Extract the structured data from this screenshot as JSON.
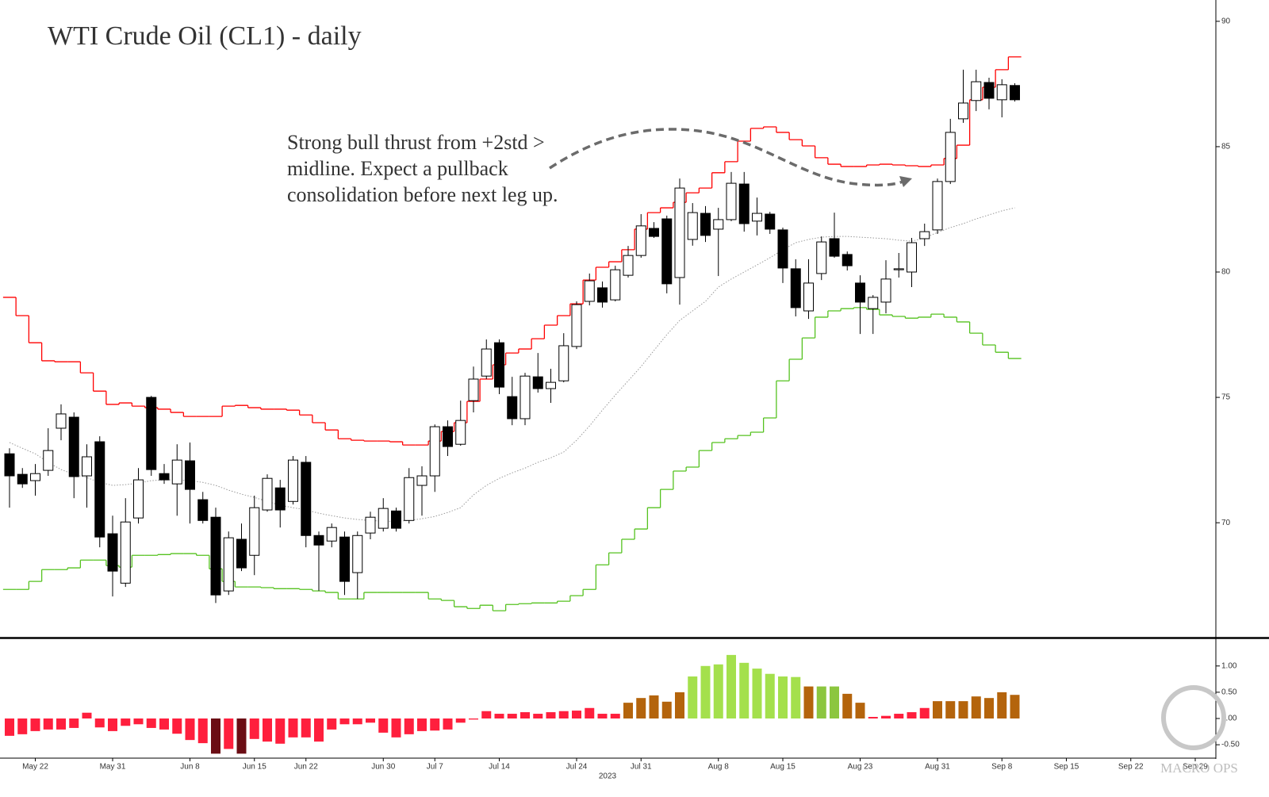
{
  "chart_data": [
    {
      "type": "candlestick",
      "title": "WTI Crude Oil (CL1) - daily",
      "annotation": [
        "Strong bull thrust  from +2std >",
        "midline. Expect a pullback",
        "consolidation before next leg up."
      ],
      "categories": [
        null,
        null,
        "May 22",
        null,
        null,
        null,
        null,
        null,
        "May 31",
        null,
        null,
        null,
        null,
        null,
        "Jun 8",
        null,
        null,
        null,
        null,
        "Jun 15",
        null,
        null,
        null,
        "Jun 22",
        null,
        null,
        null,
        null,
        null,
        "Jun 30",
        null,
        null,
        null,
        "Jul 7",
        null,
        null,
        null,
        null,
        "Jul 14",
        null,
        null,
        null,
        null,
        null,
        "Jul 24",
        null,
        null,
        null,
        null,
        "Jul 31",
        null,
        null,
        null,
        null,
        null,
        "Aug 8",
        null,
        null,
        null,
        null,
        "Aug 15",
        null,
        null,
        null,
        null,
        null,
        "Aug 23",
        null,
        null,
        null,
        null,
        null,
        "Aug 31",
        null,
        null,
        null,
        null,
        "Sep 8",
        null,
        null,
        null,
        null,
        "Sep 15",
        null,
        null,
        null,
        null,
        "Sep 22",
        null,
        null,
        null,
        null,
        "Sep 29"
      ],
      "open": [
        72.75,
        71.93,
        71.68,
        72.09,
        73.77,
        74.21,
        71.87,
        73.23,
        69.56,
        67.59,
        70.19,
        75.0,
        71.96,
        71.55,
        72.47,
        70.92,
        70.22,
        67.28,
        69.34,
        68.7,
        70.51,
        71.39,
        70.85,
        72.41,
        69.49,
        69.27,
        69.43,
        68.01,
        69.59,
        69.78,
        70.47,
        70.09,
        71.49,
        71.87,
        73.83,
        73.13,
        74.87,
        75.85,
        77.18,
        75.03,
        74.15,
        75.82,
        75.35,
        75.66,
        77.03,
        78.83,
        79.37,
        78.89,
        79.87,
        80.66,
        81.74,
        82.12,
        79.78,
        81.3,
        82.34,
        81.71,
        82.09,
        83.51,
        82.03,
        82.31,
        81.68,
        80.13,
        78.45,
        79.94,
        81.33,
        80.7,
        79.56,
        78.54,
        78.8,
        80.09,
        80.0,
        81.33,
        81.68,
        83.61,
        86.11,
        86.84,
        87.56,
        86.87,
        87.44,
        null,
        null,
        null,
        null,
        null,
        null,
        null,
        null,
        null,
        null,
        null,
        null,
        null,
        null
      ],
      "high": [
        72.97,
        72.18,
        72.34,
        73.77,
        74.72,
        74.4,
        73.13,
        73.45,
        70.28,
        70.98,
        72.18,
        75.06,
        72.34,
        73.13,
        73.2,
        71.23,
        70.6,
        69.65,
        69.97,
        71.08,
        71.93,
        71.71,
        72.66,
        72.66,
        69.65,
        69.97,
        69.65,
        69.65,
        70.44,
        70.98,
        70.6,
        72.18,
        72.25,
        73.92,
        74.08,
        74.87,
        76.23,
        77.31,
        77.31,
        75.82,
        75.98,
        76.77,
        76.14,
        77.56,
        78.83,
        79.94,
        79.62,
        80.25,
        81.04,
        82.31,
        81.99,
        82.25,
        83.73,
        82.75,
        82.63,
        82.56,
        83.99,
        83.99,
        82.97,
        82.4,
        81.77,
        80.51,
        80.51,
        81.42,
        82.37,
        80.82,
        79.87,
        79.08,
        80.47,
        80.76,
        81.36,
        81.93,
        83.73,
        86.11,
        88.07,
        88.07,
        87.75,
        87.69,
        87.53,
        null,
        null,
        null,
        null,
        null,
        null,
        null,
        null,
        null,
        null,
        null,
        null,
        null,
        null
      ],
      "low": [
        70.6,
        71.39,
        71.08,
        71.87,
        73.29,
        70.98,
        70.6,
        69.02,
        67.06,
        67.44,
        69.97,
        71.87,
        71.55,
        70.28,
        69.97,
        69.97,
        66.8,
        67.12,
        68.07,
        67.91,
        70.44,
        69.81,
        70.73,
        69.02,
        67.28,
        69.02,
        67.12,
        66.96,
        69.34,
        69.65,
        69.65,
        69.97,
        70.28,
        71.23,
        72.66,
        73.07,
        74.4,
        75.73,
        75.13,
        73.89,
        73.89,
        75.19,
        74.78,
        75.6,
        76.93,
        78.67,
        78.58,
        78.83,
        79.78,
        80.57,
        81.36,
        79.15,
        78.7,
        81.05,
        81.2,
        79.84,
        82.03,
        81.61,
        81.46,
        81.52,
        79.56,
        78.23,
        78.13,
        79.68,
        80.57,
        80.06,
        77.53,
        77.53,
        78.35,
        79.78,
        79.4,
        81.04,
        81.52,
        83.51,
        85.95,
        86.42,
        86.49,
        86.17,
        86.8,
        null,
        null,
        null,
        null,
        null,
        null,
        null,
        null,
        null,
        null,
        null,
        null,
        null,
        null
      ],
      "close": [
        71.87,
        71.55,
        71.96,
        72.88,
        74.34,
        71.84,
        72.63,
        69.43,
        68.07,
        70.03,
        71.71,
        72.12,
        71.71,
        72.5,
        71.33,
        70.09,
        67.12,
        69.4,
        68.2,
        70.6,
        71.77,
        70.51,
        72.5,
        69.49,
        69.11,
        69.81,
        67.66,
        69.49,
        70.22,
        70.57,
        69.78,
        71.8,
        71.87,
        73.83,
        73.04,
        74.08,
        75.73,
        76.93,
        75.41,
        74.15,
        75.85,
        75.35,
        75.6,
        77.06,
        78.7,
        79.65,
        78.8,
        80.09,
        80.66,
        81.84,
        81.42,
        79.53,
        83.35,
        82.37,
        81.46,
        82.09,
        83.54,
        81.93,
        82.34,
        81.71,
        80.16,
        78.58,
        79.56,
        81.2,
        80.63,
        80.25,
        78.8,
        78.99,
        79.72,
        80.13,
        81.17,
        81.61,
        83.61,
        85.57,
        86.74,
        87.59,
        86.93,
        87.47,
        86.87,
        null,
        null,
        null,
        null,
        null,
        null,
        null,
        null,
        null,
        null,
        null,
        null,
        null,
        null
      ],
      "up_color": "#ffffff",
      "down_color": "#000000",
      "series": [
        {
          "style": "step",
          "color": "#ff0000",
          "values": [
            78.99,
            78.26,
            77.18,
            76.46,
            76.42,
            76.42,
            75.98,
            75.25,
            74.72,
            74.78,
            74.65,
            74.59,
            74.53,
            74.4,
            74.24,
            74.24,
            74.24,
            74.65,
            74.68,
            74.59,
            74.53,
            74.53,
            74.49,
            74.3,
            73.99,
            73.7,
            73.35,
            73.29,
            73.26,
            73.26,
            73.23,
            73.1,
            73.1,
            73.26,
            73.64,
            73.99,
            74.84,
            75.73,
            76.3,
            76.77,
            76.93,
            77.34,
            77.88,
            78.26,
            78.73,
            79.68,
            80.19,
            80.41,
            80.89,
            81.71,
            82.37,
            82.56,
            82.78,
            83.16,
            83.35,
            83.96,
            84.4,
            85.22,
            85.73,
            85.79,
            85.57,
            85.28,
            85.03,
            84.56,
            84.3,
            84.21,
            84.21,
            84.27,
            84.3,
            84.27,
            84.24,
            84.21,
            84.27,
            84.53,
            85.06,
            86.87,
            87.37,
            88.07,
            88.58,
            null,
            null,
            null,
            null,
            null,
            null,
            null,
            null,
            null,
            null,
            null,
            null,
            null,
            null
          ]
        },
        {
          "style": "step",
          "color": "#55c21f",
          "values": [
            67.34,
            67.34,
            67.66,
            68.13,
            68.13,
            68.2,
            68.51,
            68.51,
            68.29,
            68.23,
            68.7,
            68.7,
            68.73,
            68.77,
            68.77,
            68.7,
            68.16,
            67.66,
            67.44,
            67.44,
            67.41,
            67.37,
            67.37,
            67.34,
            67.28,
            67.22,
            66.96,
            66.96,
            67.22,
            67.22,
            67.22,
            67.22,
            67.22,
            66.96,
            66.9,
            66.65,
            66.58,
            66.71,
            66.49,
            66.74,
            66.77,
            66.8,
            66.8,
            66.87,
            67.09,
            67.34,
            68.32,
            68.8,
            69.34,
            69.75,
            70.6,
            71.33,
            72.06,
            72.22,
            72.88,
            73.2,
            73.35,
            73.48,
            73.61,
            74.18,
            75.66,
            76.52,
            77.37,
            78.2,
            78.45,
            78.54,
            78.58,
            78.51,
            78.29,
            78.23,
            78.16,
            78.2,
            78.32,
            78.2,
            78.01,
            77.56,
            77.09,
            76.8,
            76.55,
            null,
            null,
            null,
            null,
            null,
            null,
            null,
            null,
            null,
            null,
            null,
            null,
            null,
            null
          ]
        },
        {
          "style": "dotted",
          "color": "#9a9a9a",
          "values": [
            73.2,
            72.97,
            72.75,
            72.41,
            72.12,
            71.93,
            71.8,
            71.61,
            71.49,
            71.52,
            71.58,
            71.68,
            71.71,
            71.71,
            71.68,
            71.61,
            71.49,
            71.3,
            71.14,
            71.01,
            70.85,
            70.7,
            70.6,
            70.51,
            70.38,
            70.28,
            70.19,
            70.13,
            70.09,
            70.06,
            70.06,
            70.09,
            70.16,
            70.25,
            70.41,
            70.6,
            71.11,
            71.49,
            71.77,
            71.99,
            72.18,
            72.41,
            72.59,
            72.82,
            73.29,
            73.86,
            74.49,
            75.09,
            75.66,
            76.23,
            76.87,
            77.5,
            78.07,
            78.45,
            78.83,
            79.4,
            79.72,
            80.0,
            80.28,
            80.57,
            80.89,
            81.17,
            81.3,
            81.39,
            81.42,
            81.42,
            81.39,
            81.36,
            81.33,
            81.27,
            81.23,
            81.36,
            81.58,
            81.77,
            81.93,
            82.12,
            82.28,
            82.44,
            82.56,
            null,
            null,
            null,
            null,
            null,
            null,
            null,
            null,
            null,
            null,
            null,
            null,
            null,
            null
          ]
        }
      ],
      "ylim": [
        65.45,
        90.85
      ],
      "yticks": [
        70,
        75,
        80,
        85,
        90
      ]
    },
    {
      "type": "bar",
      "x_label": "2023",
      "values": [
        -0.33,
        -0.3,
        -0.24,
        -0.21,
        -0.21,
        -0.18,
        0.11,
        -0.17,
        -0.24,
        -0.14,
        -0.11,
        -0.18,
        -0.21,
        -0.29,
        -0.41,
        -0.47,
        -0.67,
        -0.58,
        -0.67,
        -0.39,
        -0.44,
        -0.48,
        -0.36,
        -0.36,
        -0.44,
        -0.21,
        -0.11,
        -0.11,
        -0.08,
        -0.27,
        -0.36,
        -0.3,
        -0.24,
        -0.23,
        -0.21,
        -0.08,
        -0.02,
        0.14,
        0.09,
        0.09,
        0.12,
        0.09,
        0.12,
        0.14,
        0.15,
        0.2,
        0.09,
        0.09,
        0.3,
        0.39,
        0.44,
        0.32,
        0.5,
        0.8,
        1.0,
        1.03,
        1.21,
        1.06,
        0.95,
        0.85,
        0.8,
        0.79,
        0.61,
        0.61,
        0.61,
        0.47,
        0.3,
        0.03,
        0.05,
        0.09,
        0.12,
        0.2,
        0.33,
        0.33,
        0.33,
        0.42,
        0.39,
        0.5,
        0.45,
        null,
        null,
        null,
        null,
        null,
        null,
        null,
        null,
        null,
        null,
        null,
        null,
        null,
        null
      ],
      "colors": [
        "#ff1f3d",
        "#ff1f3d",
        "#ff1f3d",
        "#ff1f3d",
        "#ff1f3d",
        "#ff1f3d",
        "#ff1f3d",
        "#ff1f3d",
        "#ff1f3d",
        "#ff1f3d",
        "#ff1f3d",
        "#ff1f3d",
        "#ff1f3d",
        "#ff1f3d",
        "#ff1f3d",
        "#ff1f3d",
        "#6b0d14",
        "#ff1f3d",
        "#6b0d14",
        "#ff1f3d",
        "#ff1f3d",
        "#ff1f3d",
        "#ff1f3d",
        "#ff1f3d",
        "#ff1f3d",
        "#ff1f3d",
        "#ff1f3d",
        "#ff1f3d",
        "#ff1f3d",
        "#ff1f3d",
        "#ff1f3d",
        "#ff1f3d",
        "#ff1f3d",
        "#ff1f3d",
        "#ff1f3d",
        "#ff1f3d",
        "#ff1f3d",
        "#ff1f3d",
        "#ff1f3d",
        "#ff1f3d",
        "#ff1f3d",
        "#ff1f3d",
        "#ff1f3d",
        "#ff1f3d",
        "#ff1f3d",
        "#ff1f3d",
        "#ff1f3d",
        "#ff1f3d",
        "#b4640c",
        "#b4640c",
        "#b4640c",
        "#b4640c",
        "#b4640c",
        "#a4e04c",
        "#a4e04c",
        "#a4e04c",
        "#a4e04c",
        "#a4e04c",
        "#a4e04c",
        "#a4e04c",
        "#a4e04c",
        "#a4e04c",
        "#b4640c",
        "#8cc63f",
        "#8cc63f",
        "#b4640c",
        "#b4640c",
        "#ff1f3d",
        "#ff1f3d",
        "#ff1f3d",
        "#ff1f3d",
        "#ff1f3d",
        "#b4640c",
        "#b4640c",
        "#b4640c",
        "#b4640c",
        "#b4640c",
        "#b4640c",
        "#b4640c"
      ],
      "ylim": [
        -0.74,
        1.48
      ],
      "yticks": [
        {
          "value": 1,
          "label": "1.00"
        },
        {
          "value": 0.5,
          "label": "0.50"
        },
        {
          "value": 0,
          "label": "0.00"
        },
        {
          "value": -0.5,
          "label": "-0.50"
        }
      ]
    }
  ],
  "watermark": "MACRO OPS"
}
